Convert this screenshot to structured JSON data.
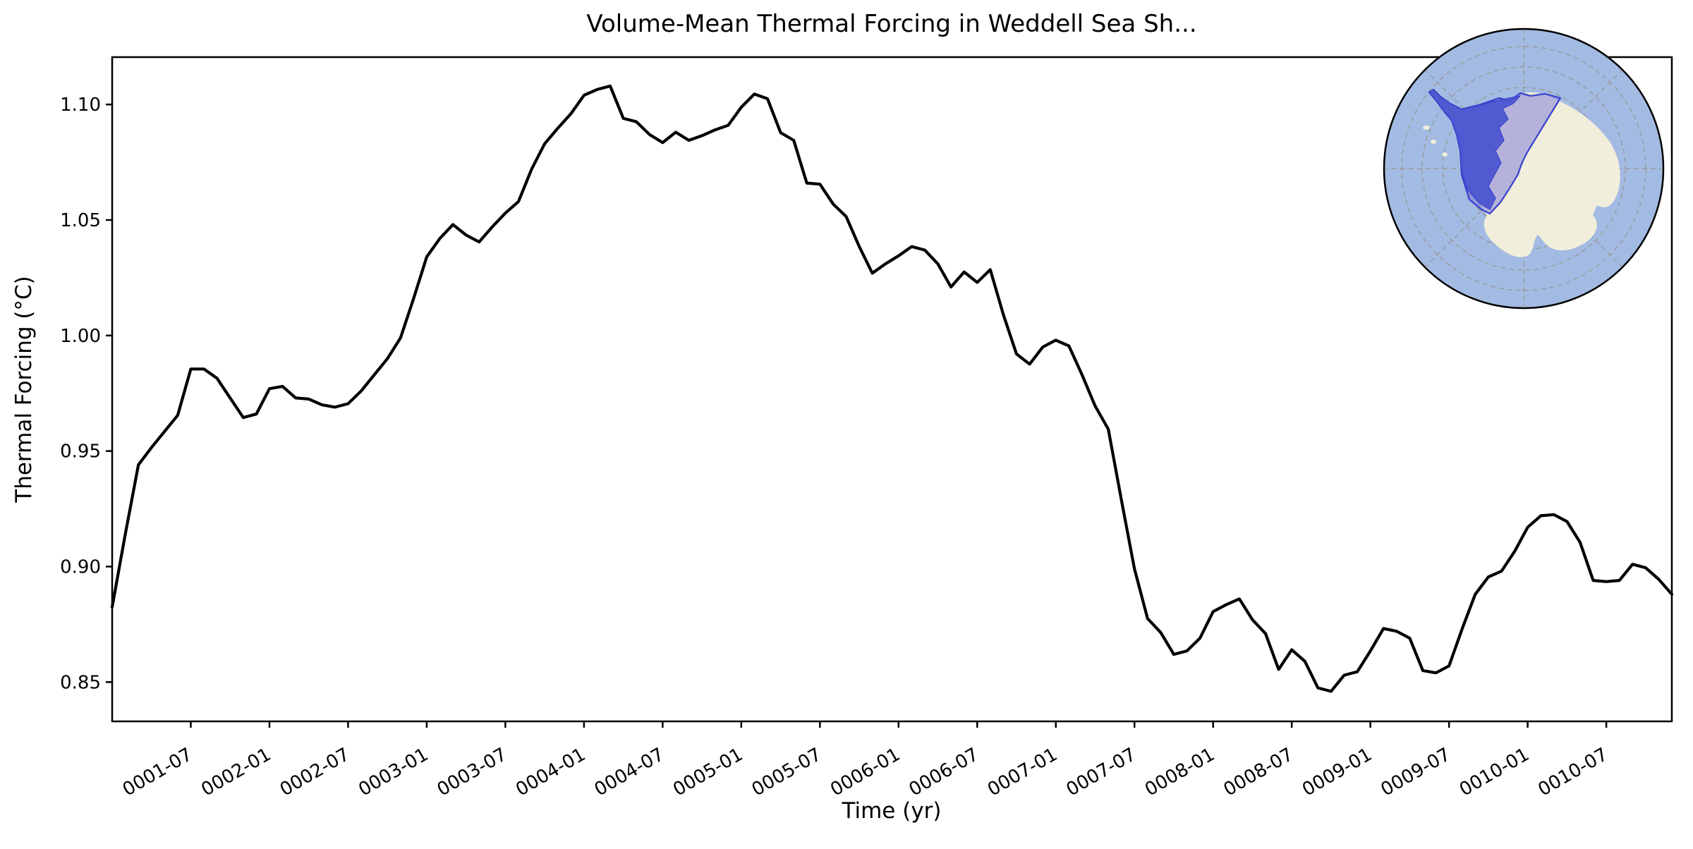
{
  "title": "Volume-Mean Thermal Forcing in Weddell Sea Sh...",
  "xlabel": "Time (yr)",
  "ylabel": "Thermal Forcing (°C)",
  "colors": {
    "line": "#000000",
    "background": "#ffffff",
    "spine": "#000000",
    "inset_ocean": "#a3bbe3",
    "inset_land": "#f1eedb",
    "inset_region_fill": "#7876dc",
    "inset_shelf_fill": "#4a53d0",
    "inset_region_border": "#3a42cc",
    "inset_graticule": "#999999"
  },
  "chart_data": {
    "type": "line",
    "title": "Volume-Mean Thermal Forcing in Weddell Sea Sh...",
    "xlabel": "Time (yr)",
    "ylabel": "Thermal Forcing (°C)",
    "series_name": "volume-mean thermal forcing",
    "frequency": "monthly",
    "grid": false,
    "legend": "none",
    "ylim": [
      0.833,
      1.1205
    ],
    "y_ticks": [
      0.85,
      0.9,
      0.95,
      1.0,
      1.05,
      1.1
    ],
    "y_tick_labels": [
      "0.85",
      "0.90",
      "0.95",
      "1.00",
      "1.05",
      "1.10"
    ],
    "x_tick_months": [
      6,
      12,
      18,
      24,
      30,
      36,
      42,
      48,
      54,
      60,
      66,
      72,
      78,
      84,
      90,
      96,
      102,
      108,
      114
    ],
    "x_tick_labels": [
      "0001-07",
      "0002-01",
      "0002-07",
      "0003-01",
      "0003-07",
      "0004-01",
      "0004-07",
      "0005-01",
      "0005-07",
      "0006-01",
      "0006-07",
      "0007-01",
      "0007-07",
      "0008-01",
      "0008-07",
      "0009-01",
      "0009-07",
      "0010-01",
      "0010-07"
    ],
    "x": [
      "0001-01",
      "0001-02",
      "0001-03",
      "0001-04",
      "0001-05",
      "0001-06",
      "0001-07",
      "0001-08",
      "0001-09",
      "0001-10",
      "0001-11",
      "0001-12",
      "0002-01",
      "0002-02",
      "0002-03",
      "0002-04",
      "0002-05",
      "0002-06",
      "0002-07",
      "0002-08",
      "0002-09",
      "0002-10",
      "0002-11",
      "0002-12",
      "0003-01",
      "0003-02",
      "0003-03",
      "0003-04",
      "0003-05",
      "0003-06",
      "0003-07",
      "0003-08",
      "0003-09",
      "0003-10",
      "0003-11",
      "0003-12",
      "0004-01",
      "0004-02",
      "0004-03",
      "0004-04",
      "0004-05",
      "0004-06",
      "0004-07",
      "0004-08",
      "0004-09",
      "0004-10",
      "0004-11",
      "0004-12",
      "0005-01",
      "0005-02",
      "0005-03",
      "0005-04",
      "0005-05",
      "0005-06",
      "0005-07",
      "0005-08",
      "0005-09",
      "0005-10",
      "0005-11",
      "0005-12",
      "0006-01",
      "0006-02",
      "0006-03",
      "0006-04",
      "0006-05",
      "0006-06",
      "0006-07",
      "0006-08",
      "0006-09",
      "0006-10",
      "0006-11",
      "0006-12",
      "0007-01",
      "0007-02",
      "0007-03",
      "0007-04",
      "0007-05",
      "0007-06",
      "0007-07",
      "0007-08",
      "0007-09",
      "0007-10",
      "0007-11",
      "0007-12",
      "0008-01",
      "0008-02",
      "0008-03",
      "0008-04",
      "0008-05",
      "0008-06",
      "0008-07",
      "0008-08",
      "0008-09",
      "0008-10",
      "0008-11",
      "0008-12",
      "0009-01",
      "0009-02",
      "0009-03",
      "0009-04",
      "0009-05",
      "0009-06",
      "0009-07",
      "0009-08",
      "0009-09",
      "0009-10",
      "0009-11",
      "0009-12",
      "0010-01",
      "0010-02",
      "0010-03",
      "0010-04",
      "0010-05",
      "0010-06",
      "0010-07",
      "0010-08",
      "0010-09",
      "0010-10",
      "0010-11",
      "0010-12"
    ],
    "values": [
      0.8825,
      0.914,
      0.944,
      0.9515,
      0.9585,
      0.9655,
      0.9855,
      0.9855,
      0.9815,
      0.973,
      0.9645,
      0.966,
      0.977,
      0.978,
      0.973,
      0.9725,
      0.97,
      0.969,
      0.9705,
      0.976,
      0.983,
      0.99,
      0.999,
      1.016,
      1.034,
      1.042,
      1.048,
      1.0435,
      1.0405,
      1.047,
      1.053,
      1.058,
      1.072,
      1.083,
      1.0897,
      1.096,
      1.104,
      1.1065,
      1.108,
      1.094,
      1.0925,
      1.087,
      1.0835,
      1.088,
      1.0845,
      1.0865,
      1.089,
      1.091,
      1.0988,
      1.1045,
      1.1025,
      1.0878,
      1.0845,
      1.066,
      1.0655,
      1.057,
      1.0515,
      1.0385,
      1.027,
      1.031,
      1.0345,
      1.0385,
      1.037,
      1.031,
      1.021,
      1.0275,
      1.023,
      1.0285,
      1.009,
      0.992,
      0.9876,
      0.995,
      0.998,
      0.9955,
      0.983,
      0.9695,
      0.9595,
      0.929,
      0.899,
      0.8775,
      0.8715,
      0.862,
      0.8635,
      0.869,
      0.8805,
      0.8835,
      0.886,
      0.877,
      0.871,
      0.8555,
      0.864,
      0.859,
      0.8475,
      0.846,
      0.853,
      0.8545,
      0.8635,
      0.8732,
      0.872,
      0.869,
      0.855,
      0.854,
      0.857,
      0.873,
      0.888,
      0.8955,
      0.898,
      0.9065,
      0.917,
      0.922,
      0.9225,
      0.9195,
      0.9105,
      0.894,
      0.8935,
      0.894,
      0.901,
      0.8995,
      0.8945,
      0.888
    ],
    "inset": {
      "type": "map",
      "description": "South polar stereographic view of Antarctica with the Weddell Sea shelf sector highlighted",
      "position": "top-right"
    }
  }
}
